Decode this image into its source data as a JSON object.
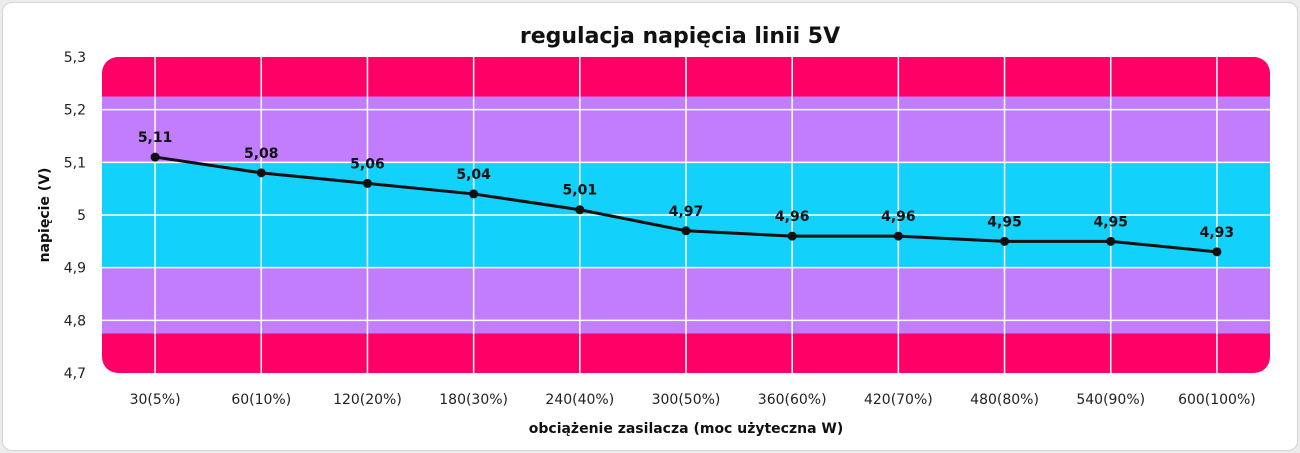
{
  "chart_data": {
    "type": "line",
    "title": "regulacja napięcia linii 5V",
    "xlabel": "obciążenie zasilacza (moc użyteczna W)",
    "ylabel": "napięcie (V)",
    "categories": [
      "30(5%)",
      "60(10%)",
      "120(20%)",
      "180(30%)",
      "240(40%)",
      "300(50%)",
      "360(60%)",
      "420(70%)",
      "480(80%)",
      "540(90%)",
      "600(100%)"
    ],
    "series": [
      {
        "values": [
          5.11,
          5.08,
          5.06,
          5.04,
          5.01,
          4.97,
          4.96,
          4.96,
          4.95,
          4.95,
          4.93
        ],
        "labels": [
          "5,11",
          "5,08",
          "5,06",
          "5,04",
          "5,01",
          "4,97",
          "4,96",
          "4,96",
          "4,95",
          "4,95",
          "4,93"
        ],
        "color": "#111111"
      }
    ],
    "ylim": [
      4.7,
      5.3
    ],
    "yticks": [
      4.7,
      4.8,
      4.9,
      5.0,
      5.1,
      5.2,
      5.3
    ],
    "ytick_labels": [
      "4,7",
      "4,8",
      "4,9",
      "5",
      "5,1",
      "5,2",
      "5,3"
    ],
    "grid": true,
    "bands": [
      {
        "from": 5.225,
        "to": 5.3,
        "color": "#ff0066"
      },
      {
        "from": 5.1,
        "to": 5.225,
        "color": "#c17dfb"
      },
      {
        "from": 4.9,
        "to": 5.1,
        "color": "#12d1fa"
      },
      {
        "from": 4.775,
        "to": 4.9,
        "color": "#c17dfb"
      },
      {
        "from": 4.7,
        "to": 4.775,
        "color": "#ff0066"
      }
    ],
    "colors": {
      "grid": "#ffffff",
      "line": "#111111"
    }
  }
}
